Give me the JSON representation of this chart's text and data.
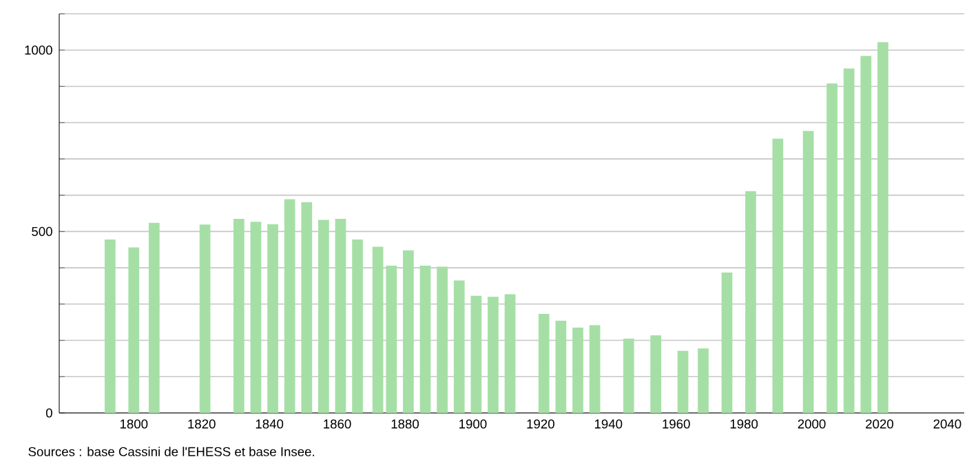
{
  "chart_data": {
    "type": "bar",
    "color": "#a6dfa6",
    "x": [
      1793,
      1800,
      1806,
      1821,
      1831,
      1836,
      1841,
      1846,
      1851,
      1856,
      1861,
      1866,
      1872,
      1876,
      1881,
      1886,
      1891,
      1896,
      1901,
      1906,
      1911,
      1921,
      1926,
      1931,
      1936,
      1946,
      1954,
      1962,
      1968,
      1975,
      1982,
      1990,
      1999,
      2006,
      2011,
      2016,
      2021
    ],
    "values": [
      478,
      456,
      524,
      519,
      535,
      527,
      520,
      589,
      581,
      532,
      535,
      478,
      458,
      406,
      448,
      406,
      403,
      365,
      323,
      320,
      327,
      273,
      254,
      235,
      242,
      205,
      214,
      171,
      178,
      387,
      611,
      756,
      777,
      908,
      949,
      984,
      1022
    ],
    "xlim": [
      1778,
      2045
    ],
    "xticks": [
      1800,
      1820,
      1840,
      1860,
      1880,
      1900,
      1920,
      1940,
      1960,
      1980,
      2000,
      2020,
      2040
    ],
    "ylim": [
      0,
      1100
    ],
    "yticks": [
      0,
      {
        "value": 100,
        "label": null
      },
      {
        "value": 200,
        "label": null
      },
      {
        "value": 300,
        "label": null
      },
      {
        "value": 400,
        "label": null
      },
      500,
      {
        "value": 600,
        "label": null
      },
      {
        "value": 700,
        "label": null
      },
      {
        "value": 800,
        "label": null
      },
      {
        "value": 900,
        "label": null
      },
      1000,
      {
        "value": 1100,
        "label": null
      }
    ],
    "grid": "y",
    "annotations": [
      "Sources : base Cassini de l'EHESS et base Insee."
    ]
  }
}
